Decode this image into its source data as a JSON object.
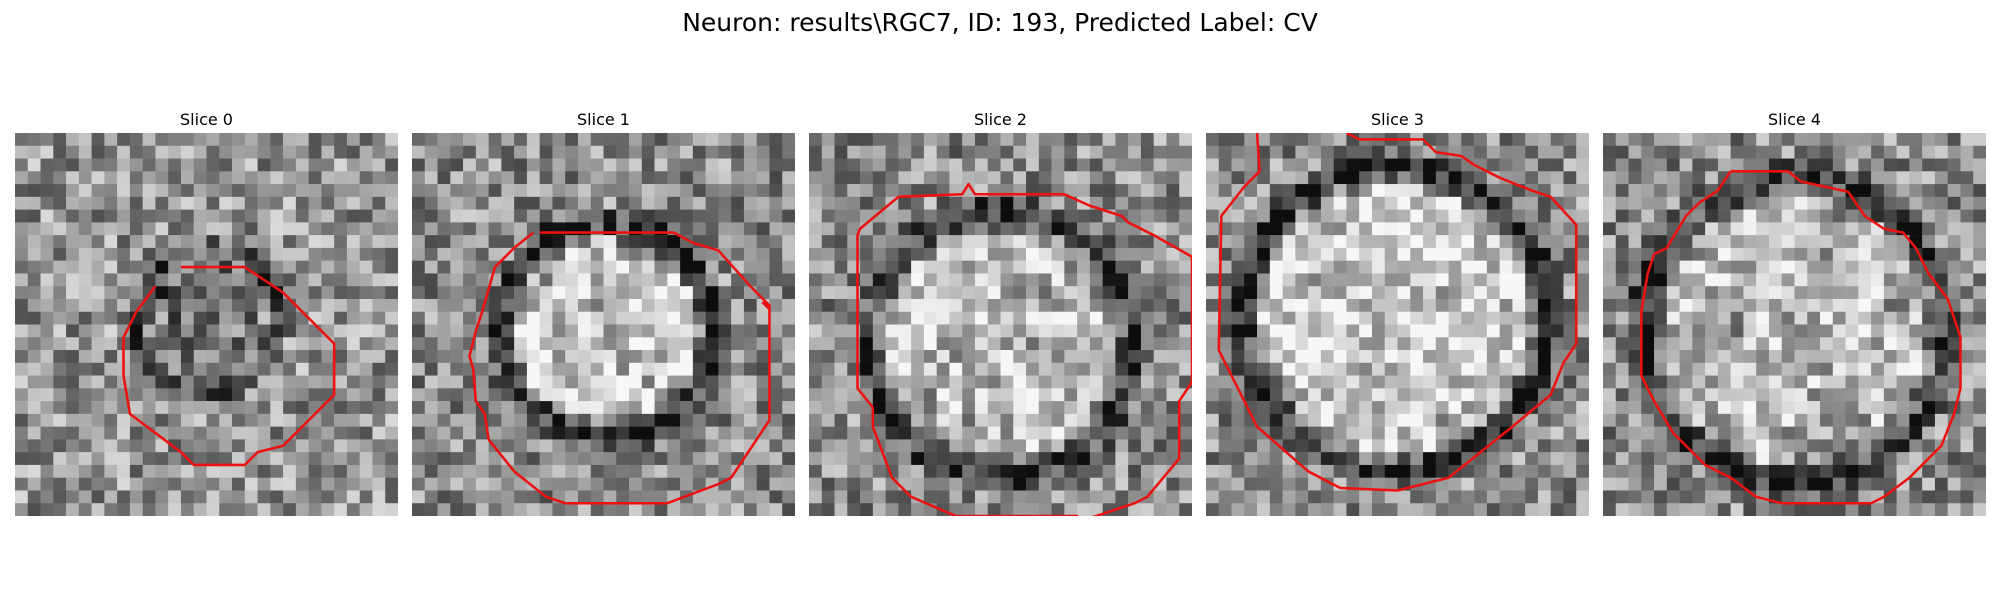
{
  "figure": {
    "title": "Neuron: results\\RGC7, ID: 193, Predicted Label: CV"
  },
  "slices": [
    {
      "title": "Slice 0"
    },
    {
      "title": "Slice 1"
    },
    {
      "title": "Slice 2"
    },
    {
      "title": "Slice 3"
    },
    {
      "title": "Slice 4"
    }
  ],
  "colors": {
    "contour": "#ee1111",
    "background": "#ffffff"
  }
}
